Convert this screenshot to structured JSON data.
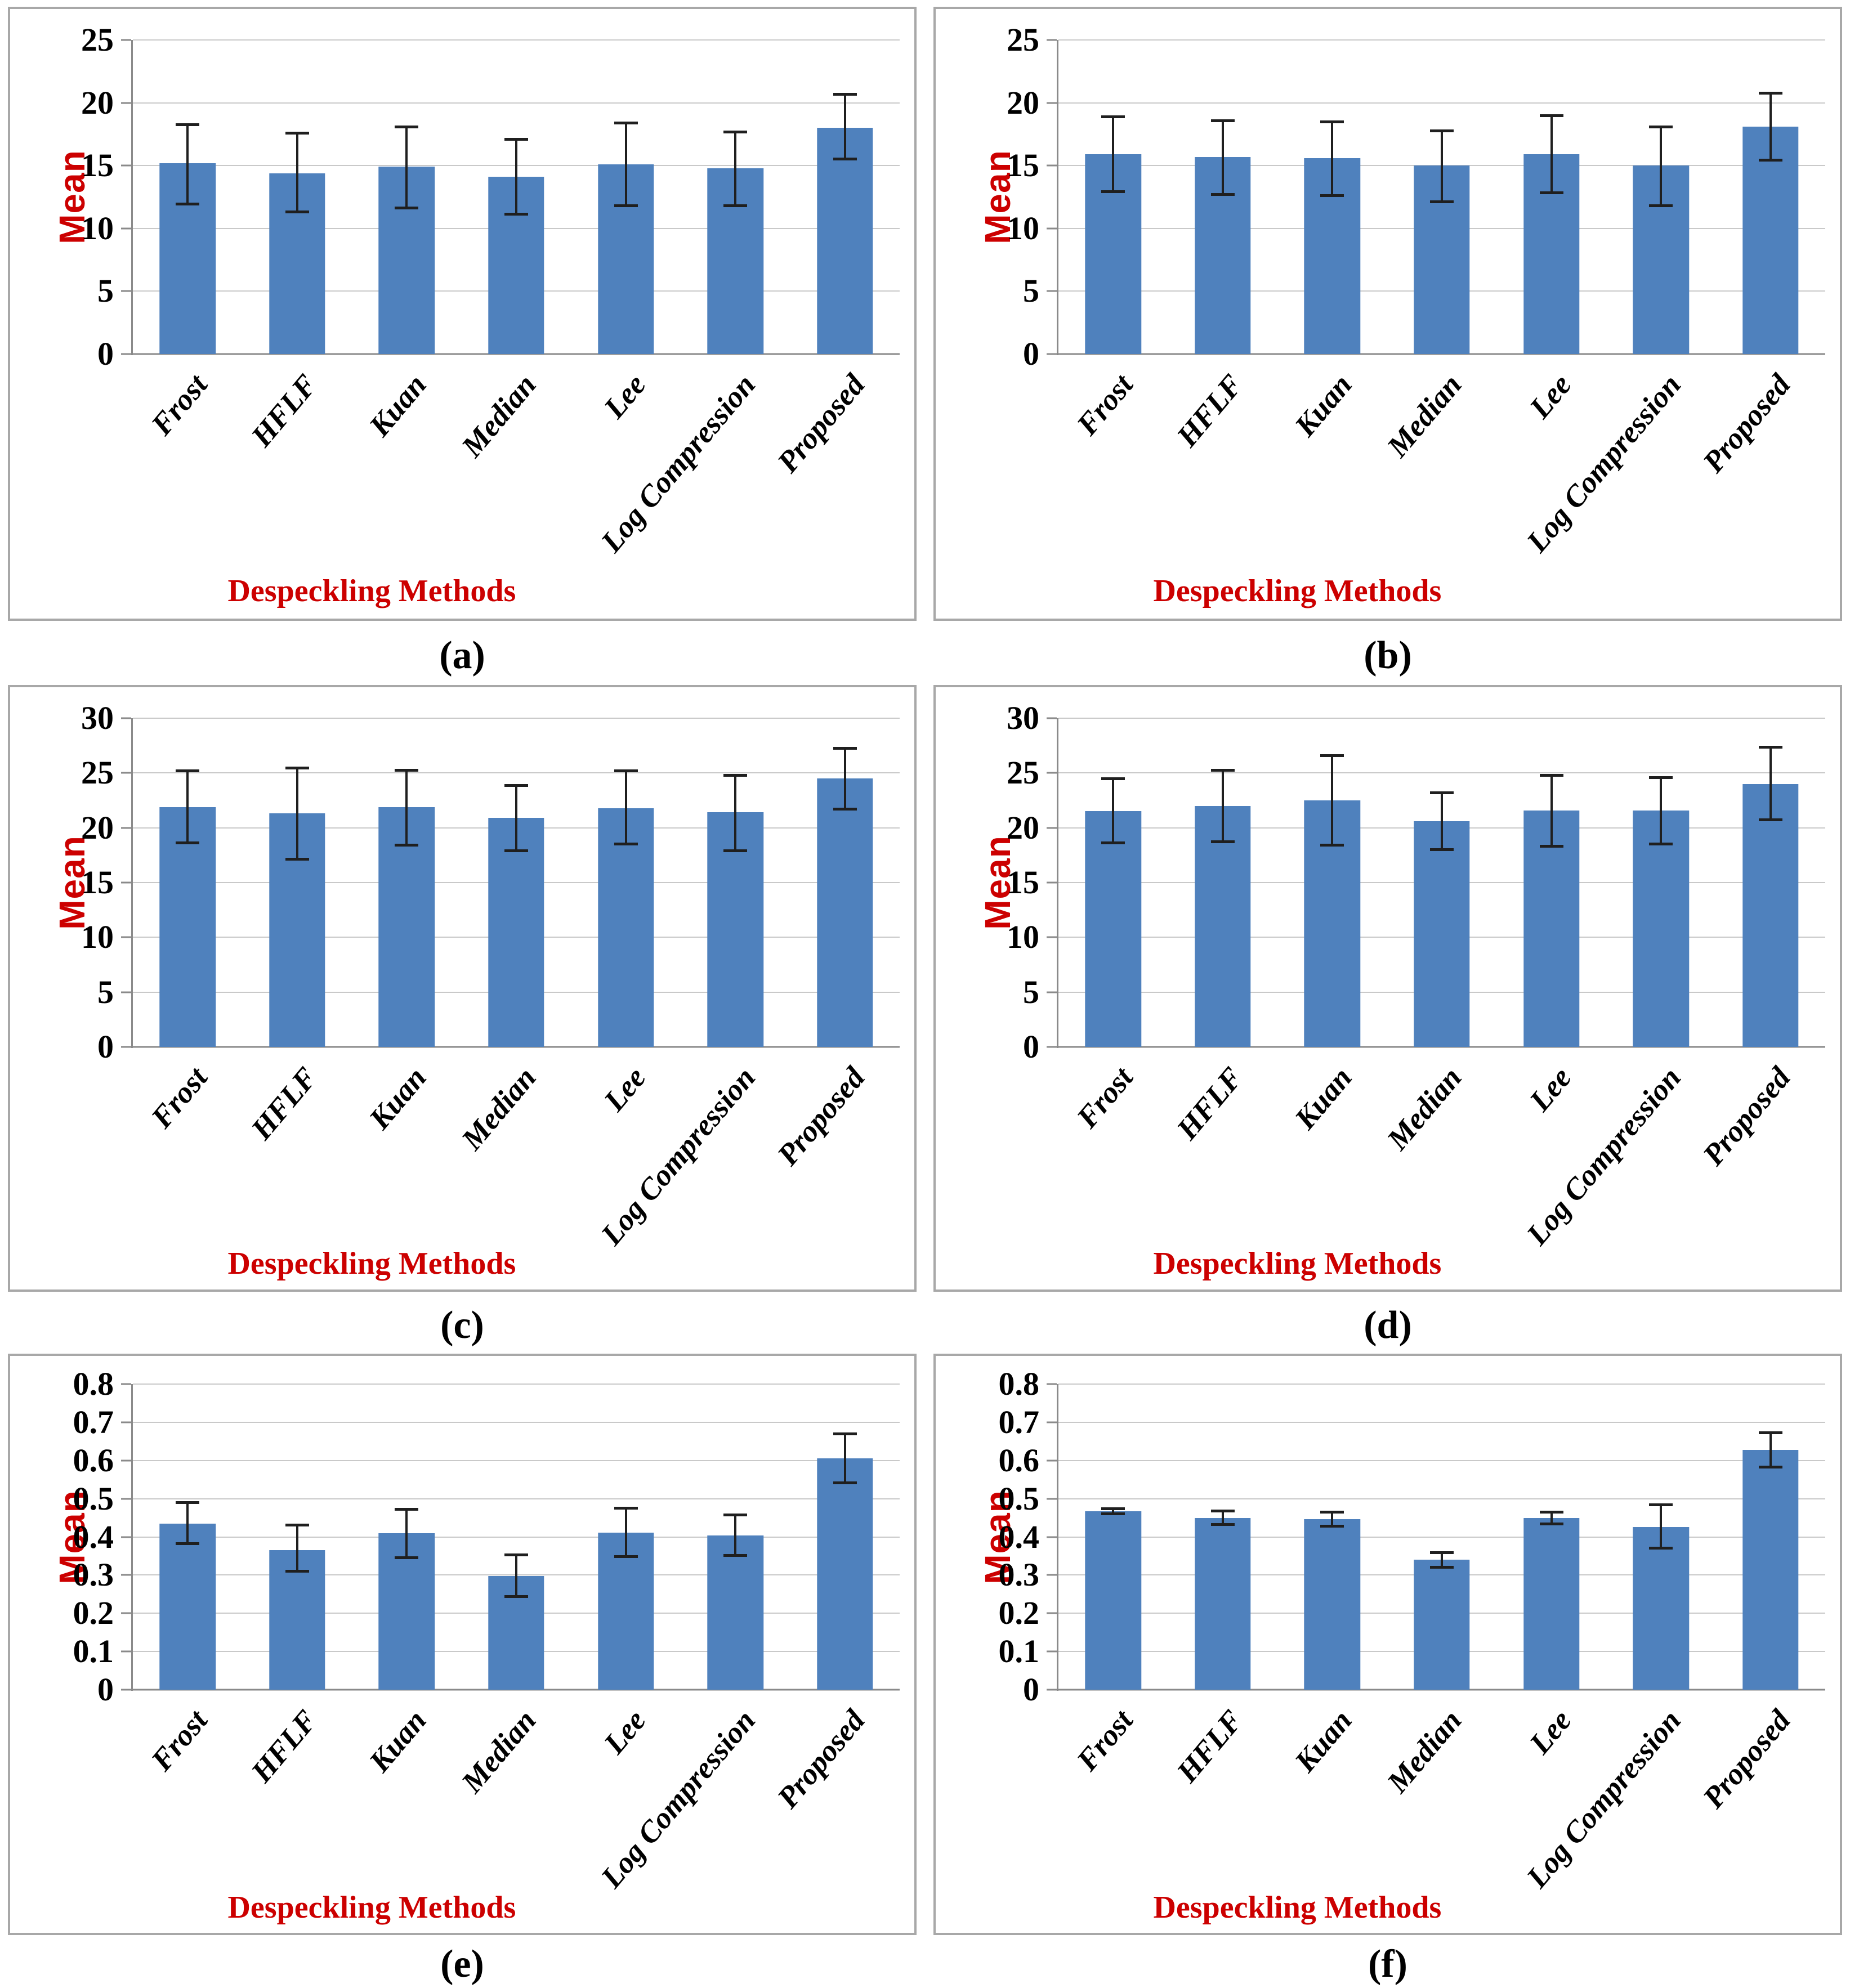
{
  "styles": {
    "bar_color": "#4F81BD",
    "error_color": "#1f1f1f",
    "axis_title_color": "#cc0000",
    "tick_label_color": "#000000",
    "gridline_color": "#c9c9c9",
    "axis_line_color": "#8a8a8a",
    "panel_border_color": "#a8a8a8",
    "background": "#ffffff"
  },
  "chart_data": [
    {
      "type": "bar",
      "panel_label": "(a)",
      "ylabel": "Mean",
      "xlabel": "Despeckling Methods",
      "categories": [
        "Frost",
        "HFLF",
        "Kuan",
        "Median",
        "Lee",
        "Log Compression",
        "Proposed"
      ],
      "values": [
        15.2,
        14.4,
        14.9,
        14.1,
        15.1,
        14.8,
        18.0
      ],
      "error_high": [
        18.3,
        17.6,
        18.1,
        17.1,
        18.4,
        17.7,
        20.7
      ],
      "error_low": [
        11.9,
        11.3,
        11.6,
        11.1,
        11.8,
        11.8,
        15.5
      ],
      "ylim": [
        0,
        25
      ],
      "ytick_step": 5,
      "ytick_decimals": 0,
      "grid": true,
      "legend": false,
      "bar_color": "#4F81BD"
    },
    {
      "type": "bar",
      "panel_label": "(b)",
      "ylabel": "Mean",
      "xlabel": "Despeckling Methods",
      "categories": [
        "Frost",
        "HFLF",
        "Kuan",
        "Median",
        "Lee",
        "Log Compression",
        "Proposed"
      ],
      "values": [
        15.9,
        15.7,
        15.6,
        15.0,
        15.9,
        15.0,
        18.1
      ],
      "error_high": [
        18.9,
        18.6,
        18.5,
        17.8,
        19.0,
        18.1,
        20.8
      ],
      "error_low": [
        12.9,
        12.7,
        12.6,
        12.1,
        12.8,
        11.8,
        15.4
      ],
      "ylim": [
        0,
        25
      ],
      "ytick_step": 5,
      "ytick_decimals": 0,
      "grid": true,
      "legend": false,
      "bar_color": "#4F81BD"
    },
    {
      "type": "bar",
      "panel_label": "(c)",
      "ylabel": "Mean",
      "xlabel": "Despeckling Methods",
      "categories": [
        "Frost",
        "HFLF",
        "Kuan",
        "Median",
        "Lee",
        "Log Compression",
        "Proposed"
      ],
      "values": [
        21.9,
        21.3,
        21.9,
        20.9,
        21.8,
        21.4,
        24.5
      ],
      "error_high": [
        25.2,
        25.5,
        25.3,
        23.9,
        25.2,
        24.8,
        27.3
      ],
      "error_low": [
        18.6,
        17.1,
        18.4,
        17.9,
        18.5,
        17.9,
        21.7
      ],
      "ylim": [
        0,
        30
      ],
      "ytick_step": 5,
      "ytick_decimals": 0,
      "grid": true,
      "legend": false,
      "bar_color": "#4F81BD"
    },
    {
      "type": "bar",
      "panel_label": "(d)",
      "ylabel": "Mean",
      "xlabel": "Despeckling Methods",
      "categories": [
        "Frost",
        "HFLF",
        "Kuan",
        "Median",
        "Lee",
        "Log Compression",
        "Proposed"
      ],
      "values": [
        21.5,
        22.0,
        22.5,
        20.6,
        21.6,
        21.6,
        24.0
      ],
      "error_high": [
        24.5,
        25.3,
        26.6,
        23.2,
        24.8,
        24.6,
        27.4
      ],
      "error_low": [
        18.6,
        18.7,
        18.4,
        18.0,
        18.3,
        18.5,
        20.7
      ],
      "ylim": [
        0,
        30
      ],
      "ytick_step": 5,
      "ytick_decimals": 0,
      "grid": true,
      "legend": false,
      "bar_color": "#4F81BD"
    },
    {
      "type": "bar",
      "panel_label": "(e)",
      "ylabel": "Mean",
      "xlabel": "Despeckling Methods",
      "categories": [
        "Frost",
        "HFLF",
        "Kuan",
        "Median",
        "Lee",
        "Log Compression",
        "Proposed"
      ],
      "values": [
        0.435,
        0.366,
        0.409,
        0.297,
        0.411,
        0.403,
        0.606
      ],
      "error_high": [
        0.49,
        0.431,
        0.473,
        0.353,
        0.476,
        0.458,
        0.67
      ],
      "error_low": [
        0.382,
        0.309,
        0.345,
        0.243,
        0.347,
        0.35,
        0.54
      ],
      "ylim": [
        0,
        0.8
      ],
      "ytick_step": 0.1,
      "ytick_decimals": 1,
      "grid": true,
      "legend": false,
      "bar_color": "#4F81BD"
    },
    {
      "type": "bar",
      "panel_label": "(f)",
      "ylabel": "Mean",
      "xlabel": "Despeckling Methods",
      "categories": [
        "Frost",
        "HFLF",
        "Kuan",
        "Median",
        "Lee",
        "Log Compression",
        "Proposed"
      ],
      "values": [
        0.467,
        0.45,
        0.447,
        0.34,
        0.45,
        0.426,
        0.627
      ],
      "error_high": [
        0.474,
        0.468,
        0.465,
        0.36,
        0.466,
        0.485,
        0.673
      ],
      "error_low": [
        0.46,
        0.432,
        0.428,
        0.32,
        0.433,
        0.37,
        0.582
      ],
      "ylim": [
        0,
        0.8
      ],
      "ytick_step": 0.1,
      "ytick_decimals": 1,
      "grid": true,
      "legend": false,
      "bar_color": "#4F81BD"
    }
  ]
}
